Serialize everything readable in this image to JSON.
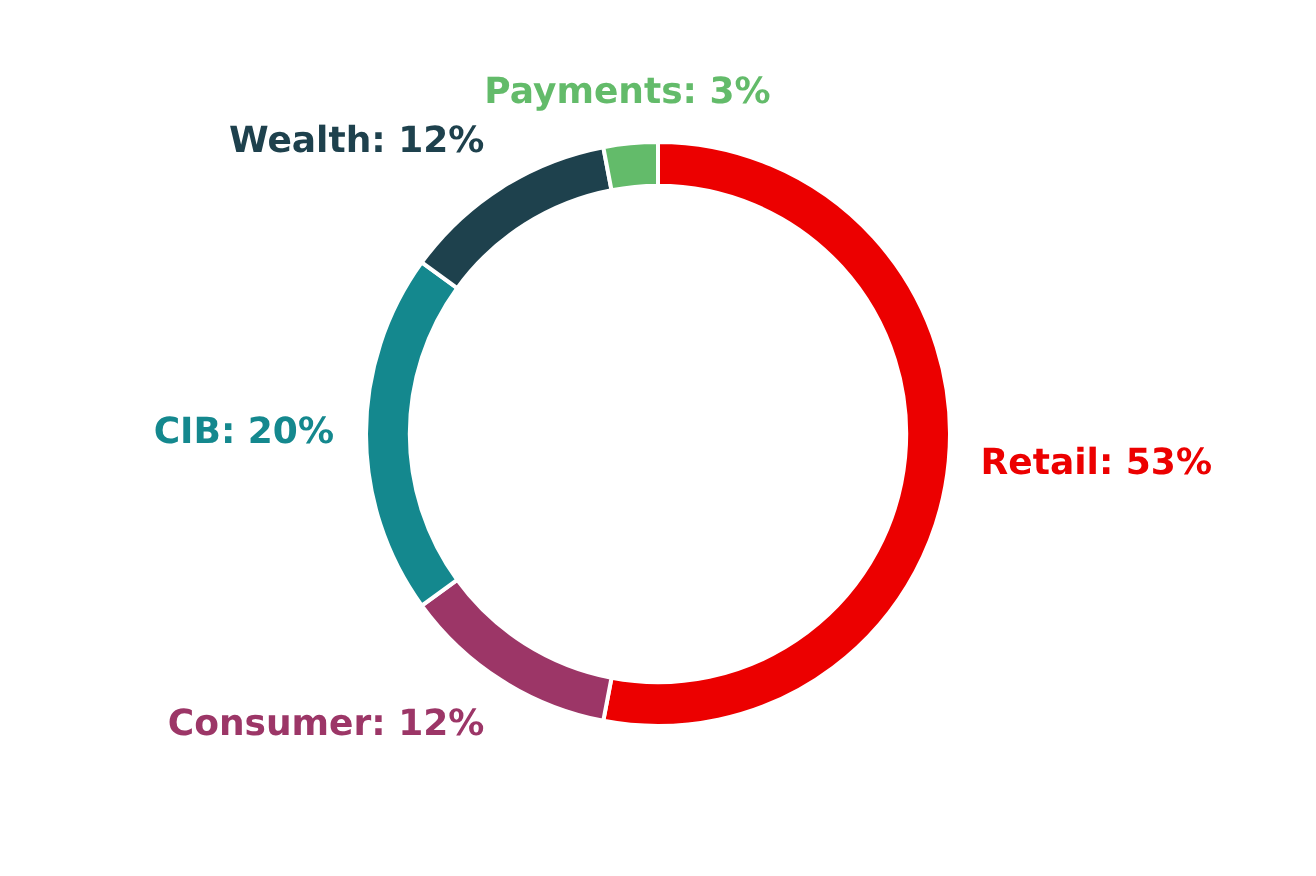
{
  "chart_data": {
    "type": "donut",
    "categories": [
      "Retail",
      "Consumer",
      "CIB",
      "Wealth",
      "Payments"
    ],
    "values": [
      53,
      12,
      20,
      12,
      3
    ],
    "colors": [
      "#ec0000",
      "#9c3667",
      "#14888e",
      "#1e414d",
      "#63bb6a"
    ],
    "value_labels": [
      "53%",
      "12%",
      "20%",
      "12%",
      "3%"
    ],
    "legend": false
  }
}
